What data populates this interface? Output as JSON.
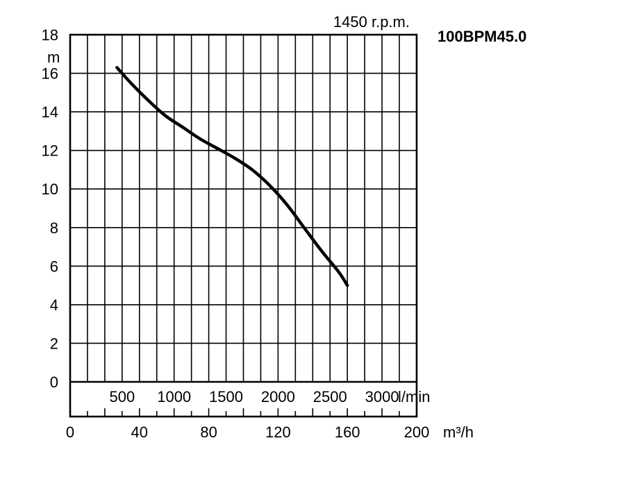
{
  "chart_data": {
    "type": "line",
    "title": "100BPM45.0",
    "subtitle": "1450 r.p.m.",
    "ylabel": "m",
    "xlabel": "m³/h",
    "ylim": [
      0,
      18
    ],
    "xlim": [
      0,
      200
    ],
    "grid": true,
    "yticks": [
      "0",
      "2",
      "4",
      "6",
      "8",
      "10",
      "12",
      "14",
      "16",
      "18"
    ],
    "xticks": [
      "0",
      "40",
      "80",
      "120",
      "160",
      "200"
    ],
    "secondary_axis": {
      "unit": "l/min",
      "ticks": [
        {
          "label": "500",
          "value": 500
        },
        {
          "label": "1000",
          "value": 1000
        },
        {
          "label": "1500",
          "value": 1500
        },
        {
          "label": "2000",
          "value": 2000
        },
        {
          "label": "2500",
          "value": 2500
        },
        {
          "label": "3000",
          "value": 3000
        }
      ]
    },
    "series": [
      {
        "x": [
          27,
          35,
          45,
          55,
          65,
          75,
          85,
          95,
          105,
          115,
          125,
          135,
          145,
          155,
          160
        ],
        "y": [
          16.3,
          15.5,
          14.6,
          13.8,
          13.2,
          12.6,
          12.1,
          11.6,
          11.0,
          10.2,
          9.2,
          8.0,
          6.8,
          5.7,
          5.0
        ]
      }
    ]
  }
}
